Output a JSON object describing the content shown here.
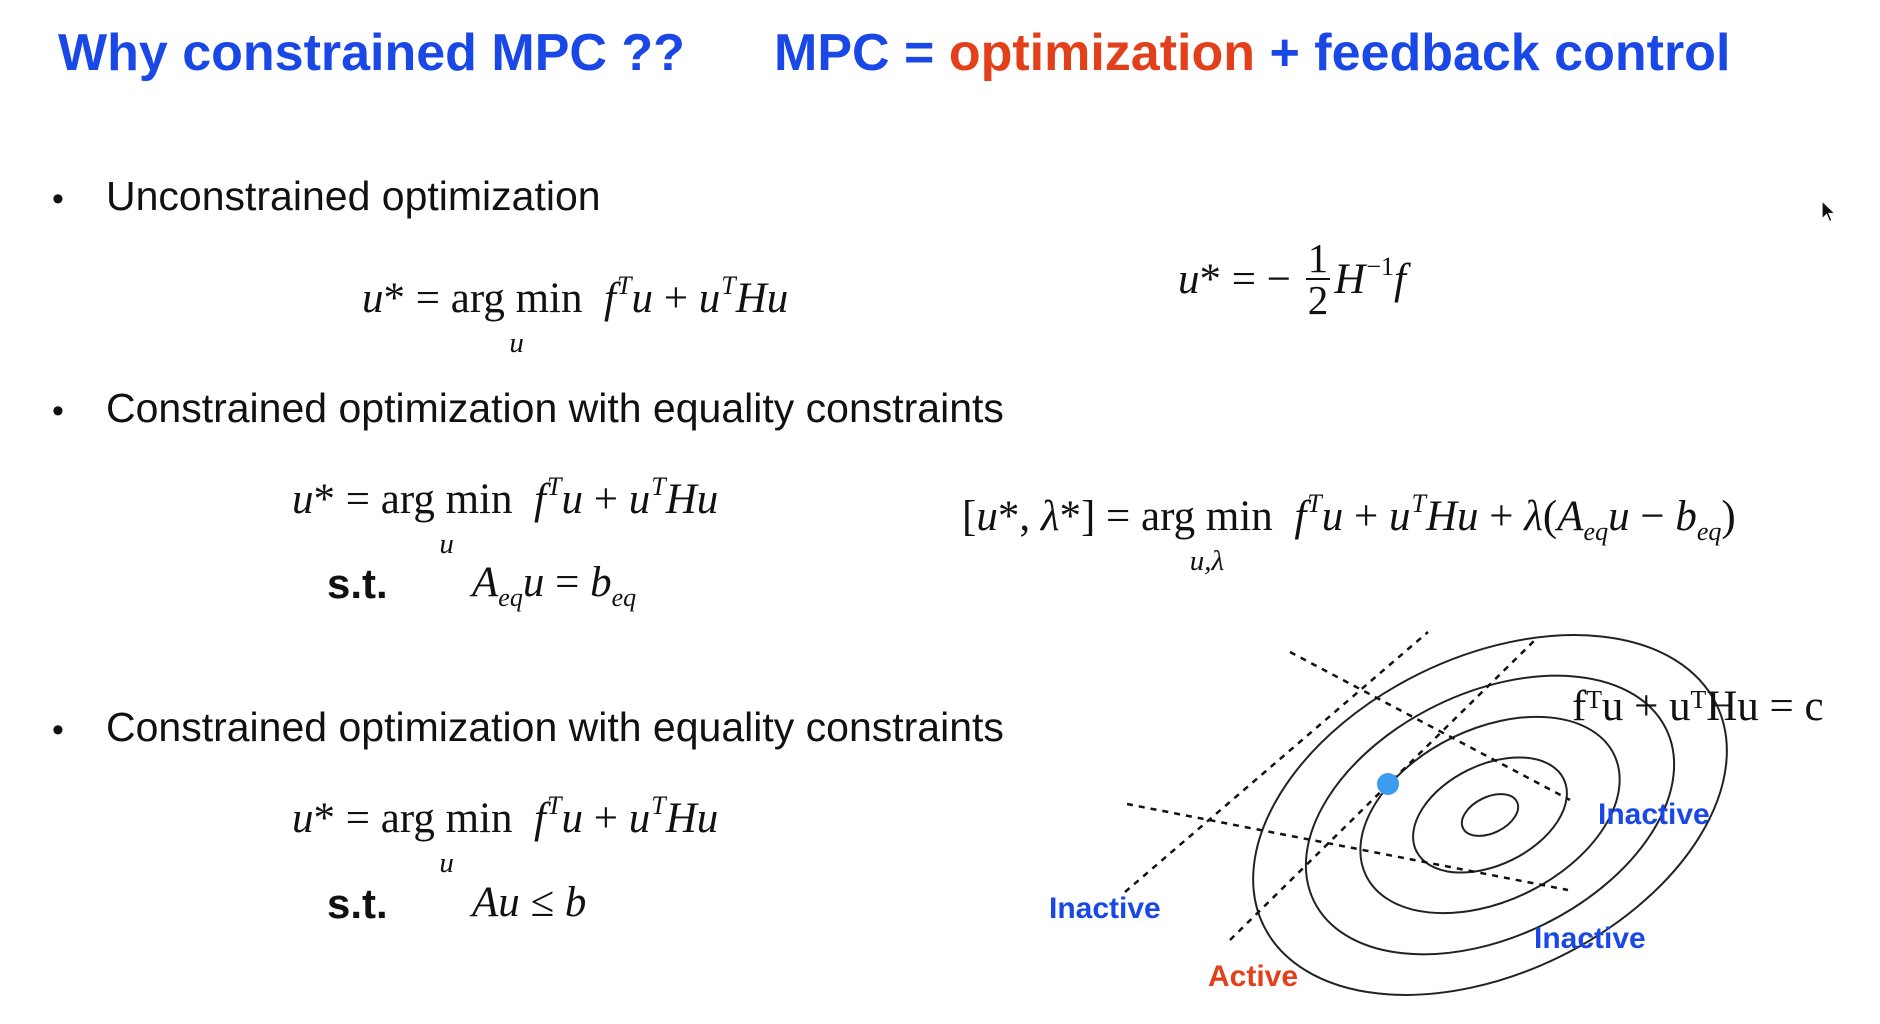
{
  "title": {
    "left": "Why constrained MPC ??",
    "mpc": "MPC =",
    "optimization": "optimization",
    "plus_feedback": "+ feedback control"
  },
  "bullets": [
    "Unconstrained optimization",
    "Constrained optimization with equality constraints",
    "Constrained optimization with equality constraints"
  ],
  "math": {
    "argmin": "arg min",
    "under_u": "u",
    "under_ul": "u,λ",
    "st": "s.t.",
    "frac_num": "1",
    "frac_den": "2"
  },
  "diagram": {
    "contour_label": "fᵀu + uᵀHu = c",
    "labels": {
      "inactive_left": "Inactive",
      "inactive_right": "Inactive",
      "inactive_bottom": "Inactive",
      "active": "Active"
    },
    "colors": {
      "accent_blue": "#1a48e6",
      "accent_red": "#e1401b",
      "point": "#3d9cf0"
    }
  },
  "icons": {
    "cursor": "mouse-pointer-icon"
  }
}
